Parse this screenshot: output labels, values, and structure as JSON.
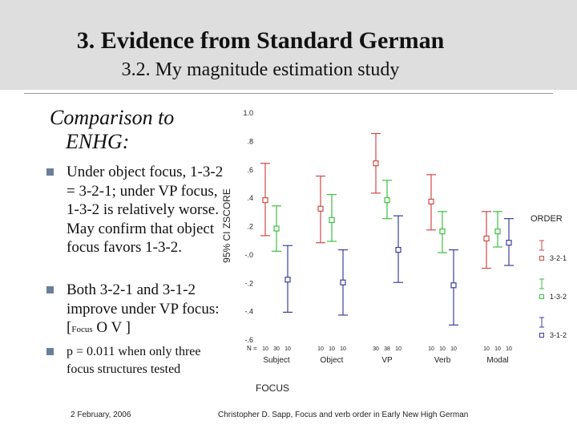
{
  "slide": {
    "title": "3. Evidence from Standard German",
    "subtitle": "3.2. My magnitude estimation study",
    "heading_line1": "Comparison to",
    "heading_line2": "ENHG:",
    "bullet1": "Under object focus, 1-3-2 = 3-2-1; under VP focus, 1-3-2 is relatively worse. May confirm that object focus favors 1-3-2.",
    "bullet2_main": "Both 3-2-1 and 3-1-2 improve under VP focus: [",
    "bullet2_sub": "Focus",
    "bullet2_end": " O V ]",
    "bullet3": "p = 0.011 when only three focus structures tested",
    "footer_date": "2 February, 2006",
    "footer_credit": "Christopher D. Sapp, Focus and verb order in Early New High German"
  },
  "chart_data": {
    "type": "errorbar",
    "xlabel": "FOCUS",
    "ylabel": "95% CI ZSCORE",
    "ylim": [
      -0.6,
      1.0
    ],
    "yticks": [
      1.0,
      0.8,
      0.6,
      0.4,
      0.2,
      0.0,
      -0.2,
      -0.4,
      -0.6
    ],
    "ytick_labels": [
      "1.0",
      ".8",
      ".6",
      ".4",
      ".2",
      "-.0",
      "-.2",
      "-.4",
      "-.6"
    ],
    "n_label": "N =",
    "categories": [
      "Subject",
      "Object",
      "VP",
      "Verb",
      "Modal"
    ],
    "n_counts": [
      [
        "10",
        "30",
        "10"
      ],
      [
        "10",
        "10",
        "10"
      ],
      [
        "30",
        "38",
        "10"
      ],
      [
        "10",
        "10",
        "10"
      ],
      [
        "10",
        "10",
        "10"
      ]
    ],
    "legend_title": "ORDER",
    "legend_position": "right",
    "series": [
      {
        "name": "3-2-1",
        "color": "#d14a4a",
        "mean": [
          0.38,
          0.32,
          0.64,
          0.37,
          0.11
        ],
        "lower": [
          0.13,
          0.08,
          0.43,
          0.17,
          -0.1
        ],
        "upper": [
          0.64,
          0.55,
          0.85,
          0.56,
          0.3
        ]
      },
      {
        "name": "1-3-2",
        "color": "#3fbf3f",
        "mean": [
          0.18,
          0.24,
          0.38,
          0.16,
          0.16
        ],
        "lower": [
          0.02,
          0.09,
          0.25,
          0.01,
          0.05
        ],
        "upper": [
          0.34,
          0.42,
          0.52,
          0.3,
          0.3
        ]
      },
      {
        "name": "3-1-2",
        "color": "#3b3f9a",
        "mean": [
          -0.18,
          -0.2,
          0.03,
          -0.22,
          0.08
        ],
        "lower": [
          -0.41,
          -0.43,
          -0.2,
          -0.5,
          -0.08
        ],
        "upper": [
          0.06,
          0.03,
          0.27,
          0.03,
          0.25
        ]
      }
    ]
  }
}
